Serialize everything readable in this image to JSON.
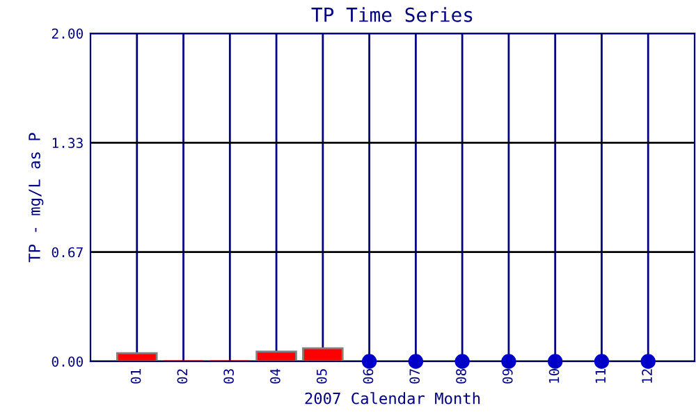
{
  "chart_data": {
    "type": "bar",
    "title": "TP Time Series",
    "xlabel": "2007 Calendar Month",
    "ylabel": "TP - mg/L as P",
    "categories": [
      "01",
      "02",
      "03",
      "04",
      "05",
      "06",
      "07",
      "08",
      "09",
      "10",
      "11",
      "12"
    ],
    "series": [
      {
        "color": "#ff0000",
        "values": [
          0.05,
          0,
          0,
          0.06,
          0.08,
          null,
          null,
          null,
          null,
          null,
          null,
          null
        ]
      },
      {
        "type": "scatter",
        "color": "#0000c8",
        "marker": "circle",
        "values": [
          null,
          null,
          null,
          null,
          null,
          0,
          0,
          0,
          0,
          0,
          0,
          0
        ]
      }
    ],
    "ylim": [
      0,
      2
    ],
    "yticks": [
      {
        "value": 0,
        "label": "0.00"
      },
      {
        "value": 0.6667,
        "label": "0.67"
      },
      {
        "value": 1.3333,
        "label": "1.33"
      },
      {
        "value": 2,
        "label": "2.00"
      }
    ],
    "grid": true
  }
}
